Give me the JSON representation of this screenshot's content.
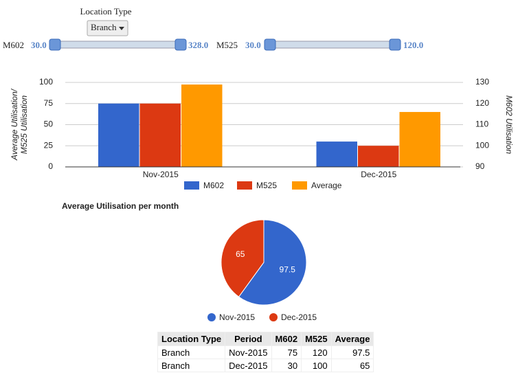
{
  "controls": {
    "location": {
      "label": "Location Type",
      "selected": "Branch"
    },
    "sliders": [
      {
        "name": "M602",
        "low": "30.0",
        "high": "328.0"
      },
      {
        "name": "M525",
        "low": "30.0",
        "high": "120.0"
      }
    ]
  },
  "chart_data": [
    {
      "type": "bar",
      "y_label": [
        "Average Utilisation/",
        "M525 Utilisation"
      ],
      "y2_label": "M602 Utilisation",
      "categories": [
        "Nov-2015",
        "Dec-2015"
      ],
      "series": [
        {
          "name": "M602",
          "color": "#3366cc",
          "values": [
            75,
            30
          ]
        },
        {
          "name": "M525",
          "color": "#dc3912",
          "values": [
            120,
            100
          ],
          "axis": "y2"
        },
        {
          "name": "Average",
          "color": "#ff9900",
          "values": [
            97.5,
            65
          ]
        }
      ],
      "ylim": [
        0,
        100
      ],
      "yticks": [
        0,
        25,
        50,
        75,
        100
      ],
      "y2lim": [
        90,
        130
      ],
      "y2ticks": [
        90,
        100,
        110,
        120,
        130
      ],
      "grid": true,
      "legend": "bottom"
    },
    {
      "type": "pie",
      "title": "Average Utilisation per month",
      "categories": [
        "Nov-2015",
        "Dec-2015"
      ],
      "values": [
        97.5,
        65
      ],
      "colors": [
        "#3366cc",
        "#dc3912"
      ],
      "legend": "bottom"
    }
  ],
  "table": {
    "header": [
      "Location Type",
      "Period",
      "M602",
      "M525",
      "Average"
    ],
    "rows": [
      [
        "Branch",
        "Nov-2015",
        75,
        120,
        97.5
      ],
      [
        "Branch",
        "Dec-2015",
        30,
        100,
        65
      ]
    ]
  }
}
